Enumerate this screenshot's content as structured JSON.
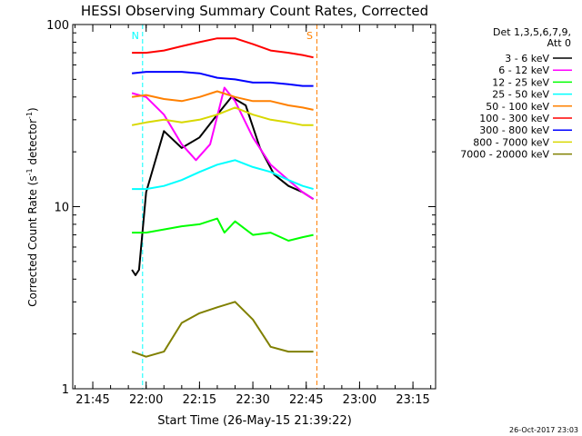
{
  "chart_data": {
    "type": "line",
    "title": "HESSI Observing Summary Count Rates, Corrected",
    "xlabel": "Start Time (26-May-15 21:39:22)",
    "ylabel_prefix": "Corrected Count Rate (s",
    "ylabel_sup1": "-1",
    "ylabel_mid": " detector",
    "ylabel_sup2": "-1",
    "ylabel_suffix": ")",
    "y_scale": "log",
    "ylim": [
      1,
      100
    ],
    "y_ticks": [
      {
        "value": 1,
        "label": "1"
      },
      {
        "value": 10,
        "label": "10"
      },
      {
        "value": 100,
        "label": "100"
      }
    ],
    "xlim": [
      "21:39:22",
      "23:21:22"
    ],
    "x_ticks": [
      "21:45",
      "22:00",
      "22:15",
      "22:30",
      "22:45",
      "23:00",
      "23:15"
    ],
    "grid": false,
    "legend_placement": "outside-right",
    "legend_title_line1": "Det 1,3,5,6,7,9,",
    "legend_title_line2": "Att 0",
    "series": [
      {
        "name": "3 - 6 keV",
        "color": "#000000",
        "x": [
          "21:56",
          "21:57",
          "21:58",
          "22:00",
          "22:05",
          "22:10",
          "22:15",
          "22:20",
          "22:24",
          "22:28",
          "22:32",
          "22:36",
          "22:40",
          "22:44",
          "22:47"
        ],
        "values": [
          4.5,
          4.2,
          4.5,
          12,
          26,
          21,
          24,
          32,
          40,
          36,
          21,
          15,
          13,
          12,
          11
        ]
      },
      {
        "name": "6 - 12 keV",
        "color": "#ff00ff",
        "x": [
          "21:56",
          "22:00",
          "22:05",
          "22:10",
          "22:14",
          "22:18",
          "22:22",
          "22:25",
          "22:30",
          "22:35",
          "22:40",
          "22:44",
          "22:47"
        ],
        "values": [
          42,
          40,
          32,
          22,
          18,
          22,
          45,
          38,
          24,
          17,
          14,
          12,
          11
        ]
      },
      {
        "name": "12 - 25 keV",
        "color": "#00ff00",
        "x": [
          "21:56",
          "22:00",
          "22:05",
          "22:10",
          "22:15",
          "22:20",
          "22:22",
          "22:25",
          "22:30",
          "22:35",
          "22:40",
          "22:44",
          "22:47"
        ],
        "values": [
          7.2,
          7.2,
          7.5,
          7.8,
          8.0,
          8.6,
          7.2,
          8.3,
          7.0,
          7.2,
          6.5,
          6.8,
          7.0
        ]
      },
      {
        "name": "25 - 50 keV",
        "color": "#00ffff",
        "x": [
          "21:56",
          "22:00",
          "22:05",
          "22:10",
          "22:15",
          "22:20",
          "22:25",
          "22:30",
          "22:35",
          "22:40",
          "22:44",
          "22:47"
        ],
        "values": [
          12.5,
          12.5,
          13,
          14,
          15.5,
          17,
          18,
          16.5,
          15.5,
          14,
          13,
          12.5
        ]
      },
      {
        "name": "50 - 100 keV",
        "color": "#ff8000",
        "x": [
          "21:56",
          "22:00",
          "22:05",
          "22:10",
          "22:15",
          "22:20",
          "22:25",
          "22:30",
          "22:35",
          "22:40",
          "22:44",
          "22:47"
        ],
        "values": [
          40,
          41,
          39,
          38,
          40,
          43,
          40,
          38,
          38,
          36,
          35,
          34
        ]
      },
      {
        "name": "100 - 300 keV",
        "color": "#ff0000",
        "x": [
          "21:56",
          "22:00",
          "22:05",
          "22:10",
          "22:15",
          "22:20",
          "22:25",
          "22:30",
          "22:35",
          "22:40",
          "22:44",
          "22:47"
        ],
        "values": [
          70,
          70,
          72,
          76,
          80,
          84,
          84,
          78,
          72,
          70,
          68,
          66
        ]
      },
      {
        "name": "300 - 800 keV",
        "color": "#0000ff",
        "x": [
          "21:56",
          "22:00",
          "22:05",
          "22:10",
          "22:15",
          "22:20",
          "22:25",
          "22:30",
          "22:35",
          "22:40",
          "22:44",
          "22:47"
        ],
        "values": [
          54,
          55,
          55,
          55,
          54,
          51,
          50,
          48,
          48,
          47,
          46,
          46
        ]
      },
      {
        "name": "800 - 7000 keV",
        "color": "#d8d800",
        "x": [
          "21:56",
          "22:00",
          "22:05",
          "22:10",
          "22:15",
          "22:20",
          "22:25",
          "22:30",
          "22:35",
          "22:40",
          "22:44",
          "22:47"
        ],
        "values": [
          28,
          29,
          30,
          29,
          30,
          32,
          35,
          32,
          30,
          29,
          28,
          28
        ]
      },
      {
        "name": "7000 - 20000 keV",
        "color": "#808000",
        "x": [
          "21:56",
          "22:00",
          "22:05",
          "22:10",
          "22:15",
          "22:20",
          "22:25",
          "22:30",
          "22:35",
          "22:40",
          "22:44",
          "22:47"
        ],
        "values": [
          1.6,
          1.5,
          1.6,
          2.3,
          2.6,
          2.8,
          3.0,
          2.4,
          1.7,
          1.6,
          1.6,
          1.6
        ]
      }
    ],
    "orbit_markers": [
      {
        "label": "N",
        "color": "#00ffff",
        "x": "21:59"
      },
      {
        "label": "S",
        "color": "#ff8000",
        "x": "22:48"
      }
    ],
    "timestamp": "26-Oct-2017 23:03"
  }
}
